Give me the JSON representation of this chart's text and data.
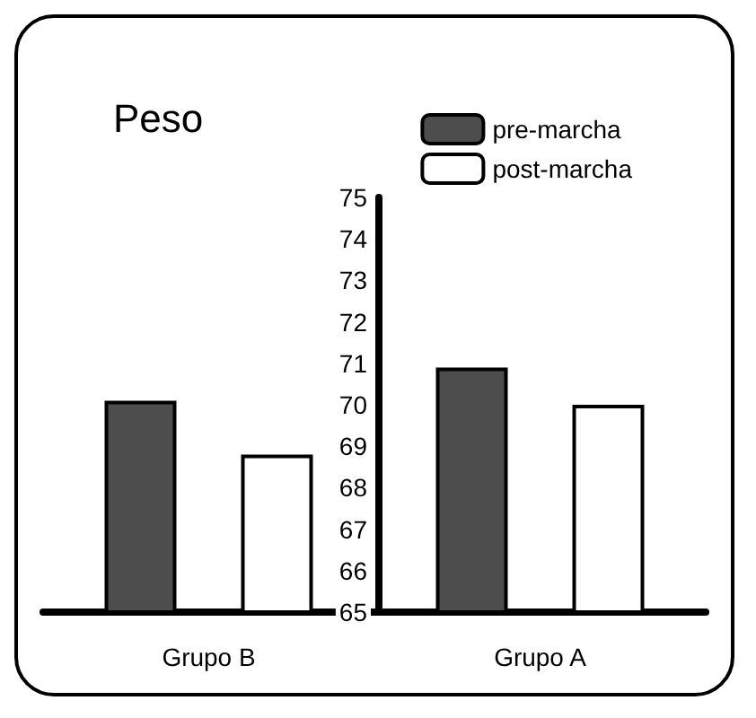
{
  "chart_data": {
    "type": "bar",
    "title": "Peso",
    "categories": [
      "Grupo B",
      "Grupo A"
    ],
    "series": [
      {
        "name": "pre-marcha",
        "color": "#4d4d4d",
        "values": [
          70.1,
          70.9
        ]
      },
      {
        "name": "post-marcha",
        "color": "#ffffff",
        "values": [
          68.8,
          70.0
        ]
      }
    ],
    "ylim": [
      65,
      75
    ],
    "yticks": [
      65,
      66,
      67,
      68,
      69,
      70,
      71,
      72,
      73,
      74,
      75
    ],
    "grid": false,
    "legend": "top right"
  }
}
